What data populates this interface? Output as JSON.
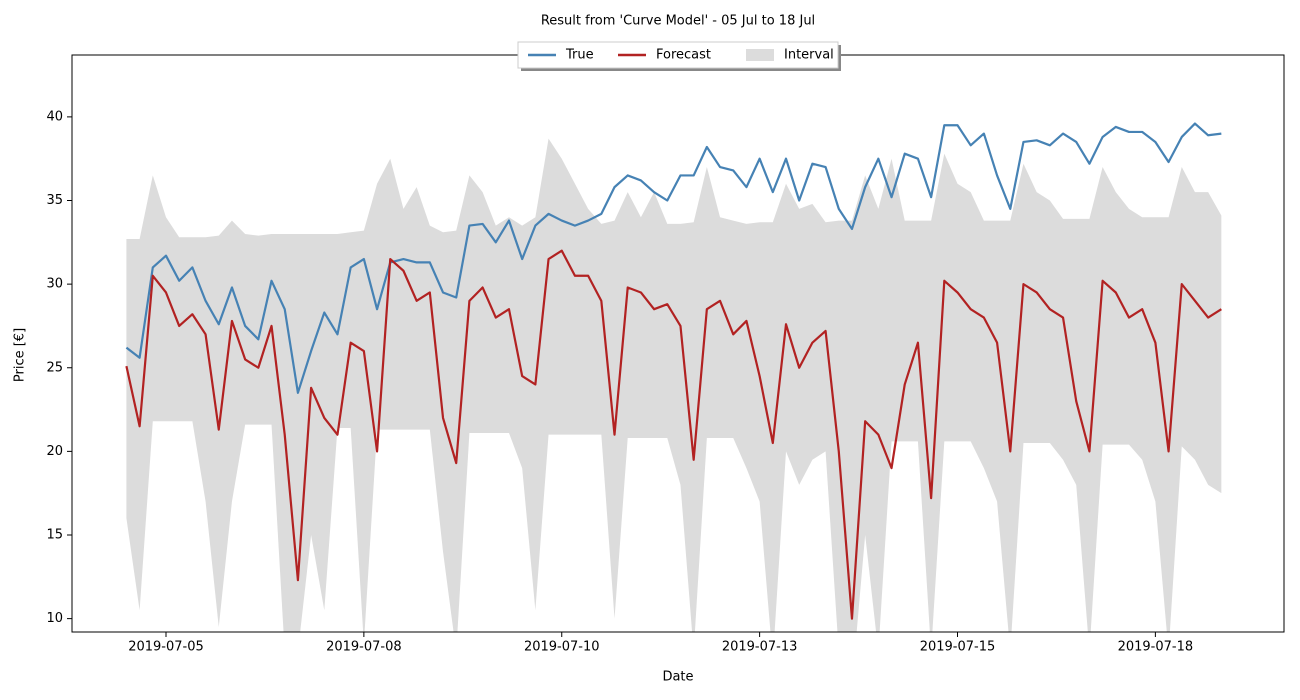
{
  "chart_data": {
    "type": "line",
    "title": "Result from 'Curve Model' - 05 Jul to 18 Jul",
    "xlabel": "Date",
    "ylabel": "Price [€]",
    "x": [
      "2019-07-05 00:00",
      "2019-07-05 04:00",
      "2019-07-05 08:00",
      "2019-07-05 12:00",
      "2019-07-05 16:00",
      "2019-07-05 20:00",
      "2019-07-06 00:00",
      "2019-07-06 04:00",
      "2019-07-06 08:00",
      "2019-07-06 12:00",
      "2019-07-06 16:00",
      "2019-07-06 20:00",
      "2019-07-07 00:00",
      "2019-07-07 04:00",
      "2019-07-07 08:00",
      "2019-07-07 12:00",
      "2019-07-07 16:00",
      "2019-07-07 20:00",
      "2019-07-08 00:00",
      "2019-07-08 04:00",
      "2019-07-08 08:00",
      "2019-07-08 12:00",
      "2019-07-08 16:00",
      "2019-07-08 20:00",
      "2019-07-09 00:00",
      "2019-07-09 04:00",
      "2019-07-09 08:00",
      "2019-07-09 12:00",
      "2019-07-09 16:00",
      "2019-07-09 20:00",
      "2019-07-10 00:00",
      "2019-07-10 04:00",
      "2019-07-10 08:00",
      "2019-07-10 12:00",
      "2019-07-10 16:00",
      "2019-07-10 20:00",
      "2019-07-11 00:00",
      "2019-07-11 04:00",
      "2019-07-11 08:00",
      "2019-07-11 12:00",
      "2019-07-11 16:00",
      "2019-07-11 20:00",
      "2019-07-12 00:00",
      "2019-07-12 04:00",
      "2019-07-12 08:00",
      "2019-07-12 12:00",
      "2019-07-12 16:00",
      "2019-07-12 20:00",
      "2019-07-13 00:00",
      "2019-07-13 04:00",
      "2019-07-13 08:00",
      "2019-07-13 12:00",
      "2019-07-13 16:00",
      "2019-07-13 20:00",
      "2019-07-14 00:00",
      "2019-07-14 04:00",
      "2019-07-14 08:00",
      "2019-07-14 12:00",
      "2019-07-14 16:00",
      "2019-07-14 20:00",
      "2019-07-15 00:00",
      "2019-07-15 04:00",
      "2019-07-15 08:00",
      "2019-07-15 12:00",
      "2019-07-15 16:00",
      "2019-07-15 20:00",
      "2019-07-16 00:00",
      "2019-07-16 04:00",
      "2019-07-16 08:00",
      "2019-07-16 12:00",
      "2019-07-16 16:00",
      "2019-07-16 20:00",
      "2019-07-17 00:00",
      "2019-07-17 04:00",
      "2019-07-17 08:00",
      "2019-07-17 12:00",
      "2019-07-17 16:00",
      "2019-07-17 20:00",
      "2019-07-18 00:00",
      "2019-07-18 04:00",
      "2019-07-18 08:00",
      "2019-07-18 12:00",
      "2019-07-18 16:00",
      "2019-07-18 20:00"
    ],
    "series": [
      {
        "name": "True",
        "color": "#4682b4",
        "values": [
          26.2,
          25.6,
          31.0,
          31.7,
          30.2,
          31.0,
          29.0,
          27.6,
          29.8,
          27.5,
          26.7,
          30.2,
          28.5,
          23.5,
          26.0,
          28.3,
          27.0,
          31.0,
          31.5,
          28.5,
          31.3,
          31.5,
          31.3,
          31.3,
          29.5,
          29.2,
          33.5,
          33.6,
          32.5,
          33.8,
          31.5,
          33.5,
          34.2,
          33.8,
          33.5,
          33.8,
          34.2,
          35.8,
          36.5,
          36.2,
          35.5,
          35.0,
          36.5,
          36.5,
          38.2,
          37.0,
          36.8,
          35.8,
          37.5,
          35.5,
          37.5,
          35.0,
          37.2,
          37.0,
          34.5,
          33.3,
          35.8,
          37.5,
          35.2,
          37.8,
          37.5,
          35.2,
          39.5,
          39.5,
          38.3,
          39.0,
          36.5,
          34.5,
          38.5,
          38.6,
          38.3,
          39.0,
          38.5,
          37.2,
          38.8,
          39.4,
          39.1,
          39.1,
          38.5,
          37.3,
          38.8,
          39.6,
          38.9,
          39.0
        ]
      },
      {
        "name": "Forecast",
        "color": "#b22222",
        "values": [
          25.1,
          21.5,
          30.5,
          29.5,
          27.5,
          28.2,
          27.0,
          21.3,
          27.8,
          25.5,
          25.0,
          27.5,
          21.0,
          12.3,
          23.8,
          22.0,
          21.0,
          26.5,
          26.0,
          20.0,
          31.5,
          30.8,
          29.0,
          29.5,
          22.0,
          19.3,
          29.0,
          29.8,
          28.0,
          28.5,
          24.5,
          24.0,
          31.5,
          32.0,
          30.5,
          30.5,
          29.0,
          21.0,
          29.8,
          29.5,
          28.5,
          28.8,
          27.5,
          19.5,
          28.5,
          29.0,
          27.0,
          27.8,
          24.5,
          20.5,
          27.6,
          25.0,
          26.5,
          27.2,
          20.0,
          10.0,
          21.8,
          21.0,
          19.0,
          24.0,
          26.5,
          17.2,
          30.2,
          29.5,
          28.5,
          28.0,
          26.5,
          20.0,
          30.0,
          29.5,
          28.5,
          28.0,
          23.0,
          20.0,
          30.2,
          29.5,
          28.0,
          28.5,
          26.5,
          20.0,
          30.0,
          29.0,
          28.0,
          28.5
        ]
      },
      {
        "name": "Interval",
        "color": "#dcdcdc",
        "upper": [
          32.7,
          32.7,
          36.5,
          34.0,
          32.8,
          32.8,
          32.8,
          32.9,
          33.8,
          33.0,
          32.9,
          33.0,
          33.0,
          33.0,
          33.0,
          33.0,
          33.0,
          33.1,
          33.2,
          36.0,
          37.5,
          34.5,
          35.8,
          33.5,
          33.1,
          33.2,
          36.5,
          35.5,
          33.5,
          34.0,
          33.5,
          34.0,
          38.7,
          37.5,
          36.0,
          34.5,
          33.6,
          33.8,
          35.5,
          34.0,
          35.5,
          33.6,
          33.6,
          33.7,
          37.0,
          34.0,
          33.8,
          33.6,
          33.7,
          33.7,
          36.0,
          34.5,
          34.8,
          33.7,
          33.8,
          33.8,
          36.5,
          34.5,
          37.5,
          33.8,
          33.8,
          33.8,
          37.8,
          36.0,
          35.5,
          33.8,
          33.8,
          33.8,
          37.2,
          35.5,
          35.0,
          33.9,
          33.9,
          33.9,
          37.0,
          35.5,
          34.5,
          34.0,
          34.0,
          34.0,
          37.0,
          35.5,
          35.5,
          34.1
        ],
        "lower": [
          16.0,
          10.5,
          21.8,
          21.8,
          21.8,
          21.8,
          17.0,
          9.5,
          17.0,
          21.6,
          21.6,
          21.6,
          8.0,
          8.0,
          15.0,
          10.5,
          21.4,
          21.4,
          8.5,
          21.3,
          21.3,
          21.3,
          21.3,
          21.3,
          14.0,
          8.0,
          21.1,
          21.1,
          21.1,
          21.1,
          19.0,
          10.5,
          21.0,
          21.0,
          21.0,
          21.0,
          21.0,
          10.0,
          20.8,
          20.8,
          20.8,
          20.8,
          18.0,
          8.0,
          20.8,
          20.8,
          20.8,
          19.0,
          17.0,
          7.5,
          20.0,
          18.0,
          19.5,
          20.0,
          8.0,
          6.0,
          15.0,
          8.0,
          20.6,
          20.6,
          20.6,
          8.0,
          20.6,
          20.6,
          20.6,
          19.0,
          17.0,
          8.0,
          20.5,
          20.5,
          20.5,
          19.5,
          18.0,
          8.0,
          20.4,
          20.4,
          20.4,
          19.5,
          17.0,
          8.0,
          20.3,
          19.5,
          18.0,
          17.5
        ]
      }
    ],
    "xlim": [
      "2019-07-04 07:30",
      "2019-07-19 15:00"
    ],
    "xticks": [
      {
        "value": "2019-07-05 12:00",
        "label": "2019-07-05"
      },
      {
        "value": "2019-07-08 00:00",
        "label": "2019-07-08"
      },
      {
        "value": "2019-07-10 12:00",
        "label": "2019-07-10"
      },
      {
        "value": "2019-07-13 00:00",
        "label": "2019-07-13"
      },
      {
        "value": "2019-07-15 12:00",
        "label": "2019-07-15"
      },
      {
        "value": "2019-07-18 00:00",
        "label": "2019-07-18"
      }
    ],
    "ylim": [
      9.2,
      43.7
    ],
    "yticks": [
      10,
      15,
      20,
      25,
      30,
      35,
      40
    ],
    "legend": "upper center"
  }
}
